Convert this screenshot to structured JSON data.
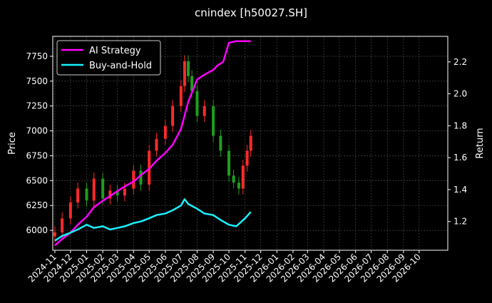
{
  "chart_data": {
    "type": "line",
    "title": "cnindex [h50027.SH]",
    "ylabel_left": "Price",
    "ylabel_right": "Return",
    "ylim_left": [
      5800,
      7950
    ],
    "ylim_right": [
      1.02,
      2.36
    ],
    "xlim": [
      "2024-10-28",
      "2026-11-25"
    ],
    "yticks_left": [
      6000,
      6250,
      6500,
      6750,
      7000,
      7250,
      7500,
      7750
    ],
    "yticks_left_labels": [
      "6000",
      "6250",
      "6500",
      "6750",
      "7000",
      "7250",
      "7500",
      "7750"
    ],
    "yticks_right": [
      1.2,
      1.4,
      1.6,
      1.8,
      2.0,
      2.2
    ],
    "yticks_right_labels": [
      "1.2",
      "1.4",
      "1.6",
      "1.8",
      "2.0",
      "2.2"
    ],
    "xticks": [
      "2024-11-01",
      "2024-12-01",
      "2025-01-01",
      "2025-02-01",
      "2025-03-01",
      "2025-04-01",
      "2025-05-01",
      "2025-06-01",
      "2025-07-01",
      "2025-08-01",
      "2025-09-01",
      "2025-10-01",
      "2025-11-01",
      "2025-12-01",
      "2026-01-01",
      "2026-02-01",
      "2026-03-01",
      "2026-04-01",
      "2026-05-01",
      "2026-06-01",
      "2026-07-01",
      "2026-08-01",
      "2026-09-01",
      "2026-10-01"
    ],
    "xtick_labels": [
      "2024-11",
      "2024-12",
      "2025-01",
      "2025-02",
      "2025-03",
      "2025-04",
      "2025-05",
      "2025-06",
      "2025-07",
      "2025-08",
      "2025-09",
      "2025-10",
      "2025-11",
      "2025-12",
      "2026-01",
      "2026-02",
      "2026-03",
      "2026-04",
      "2026-05",
      "2026-06",
      "2026-07",
      "2026-08",
      "2026-09",
      "2026-10"
    ],
    "grid": true,
    "legend_placement": "top-left",
    "price_candles": {
      "axis": "left",
      "up_color": "#ff2a2a",
      "down_color": "#1e9e1e",
      "dates": [
        "2024-11-01",
        "2024-11-15",
        "2024-12-01",
        "2024-12-15",
        "2025-01-01",
        "2025-01-15",
        "2025-02-01",
        "2025-02-15",
        "2025-03-01",
        "2025-03-15",
        "2025-04-01",
        "2025-04-15",
        "2025-05-01",
        "2025-05-15",
        "2025-06-01",
        "2025-06-15",
        "2025-07-01",
        "2025-07-08",
        "2025-07-15",
        "2025-07-22",
        "2025-08-01",
        "2025-08-15",
        "2025-09-01",
        "2025-09-15",
        "2025-10-01",
        "2025-10-10",
        "2025-10-20",
        "2025-10-28",
        "2025-11-05",
        "2025-11-12"
      ],
      "close": [
        5980,
        6120,
        6280,
        6420,
        6300,
        6520,
        6320,
        6400,
        6350,
        6420,
        6600,
        6460,
        6800,
        6920,
        7050,
        7250,
        7450,
        7700,
        7550,
        7400,
        7150,
        7250,
        6950,
        6800,
        6550,
        6480,
        6420,
        6650,
        6800,
        6950
      ]
    },
    "series": [
      {
        "name": "AI Strategy",
        "axis": "right",
        "color": "#ff00ff",
        "x": [
          "2024-11-01",
          "2024-11-15",
          "2024-12-01",
          "2024-12-15",
          "2025-01-01",
          "2025-01-15",
          "2025-02-01",
          "2025-02-15",
          "2025-03-01",
          "2025-03-15",
          "2025-04-01",
          "2025-04-15",
          "2025-05-01",
          "2025-05-15",
          "2025-06-01",
          "2025-06-15",
          "2025-07-01",
          "2025-07-15",
          "2025-08-01",
          "2025-08-15",
          "2025-09-01",
          "2025-09-10",
          "2025-09-20",
          "2025-10-01",
          "2025-10-15",
          "2025-11-01",
          "2025-11-12"
        ],
        "values": [
          1.05,
          1.09,
          1.13,
          1.18,
          1.23,
          1.29,
          1.33,
          1.36,
          1.39,
          1.42,
          1.45,
          1.49,
          1.53,
          1.58,
          1.63,
          1.68,
          1.78,
          1.95,
          2.09,
          2.12,
          2.15,
          2.18,
          2.2,
          2.32,
          2.33,
          2.33,
          2.33
        ]
      },
      {
        "name": "Buy-and-Hold",
        "axis": "right",
        "color": "#19f0ff",
        "x": [
          "2024-11-01",
          "2024-11-15",
          "2024-12-01",
          "2024-12-15",
          "2025-01-01",
          "2025-01-15",
          "2025-02-01",
          "2025-02-15",
          "2025-03-01",
          "2025-03-15",
          "2025-04-01",
          "2025-04-15",
          "2025-05-01",
          "2025-05-15",
          "2025-06-01",
          "2025-06-15",
          "2025-07-01",
          "2025-07-08",
          "2025-07-15",
          "2025-08-01",
          "2025-08-15",
          "2025-09-01",
          "2025-09-15",
          "2025-10-01",
          "2025-10-15",
          "2025-11-01",
          "2025-11-12"
        ],
        "values": [
          1.08,
          1.11,
          1.13,
          1.15,
          1.18,
          1.16,
          1.17,
          1.15,
          1.16,
          1.17,
          1.19,
          1.2,
          1.22,
          1.24,
          1.25,
          1.27,
          1.3,
          1.34,
          1.31,
          1.28,
          1.25,
          1.24,
          1.21,
          1.18,
          1.17,
          1.22,
          1.26
        ]
      }
    ]
  }
}
